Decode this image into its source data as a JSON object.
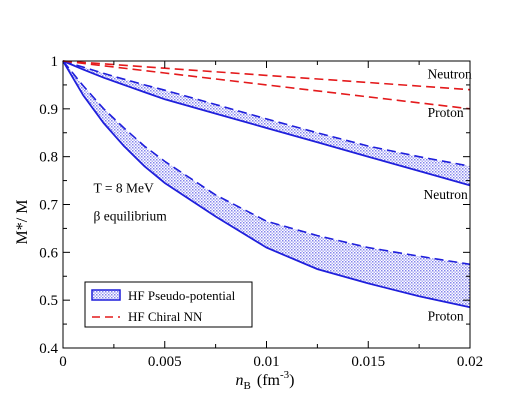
{
  "chart_data": {
    "type": "line",
    "xlabel_var": "n",
    "xlabel_sub": "B",
    "xlabel_unit": "(fm",
    "xlabel_exp": "-3",
    "xlabel_close": ")",
    "ylabel": "M*/ M",
    "xlim": [
      0,
      0.02
    ],
    "ylim": [
      0.4,
      1.0
    ],
    "xticks": [
      {
        "value": 0,
        "label": "0"
      },
      {
        "value": 0.005,
        "label": "0.005"
      },
      {
        "value": 0.01,
        "label": "0.01"
      },
      {
        "value": 0.015,
        "label": "0.015"
      },
      {
        "value": 0.02,
        "label": "0.02"
      }
    ],
    "yticks": [
      {
        "value": 0.4,
        "label": "0.4"
      },
      {
        "value": 0.5,
        "label": "0.5"
      },
      {
        "value": 0.6,
        "label": "0.6"
      },
      {
        "value": 0.7,
        "label": "0.7"
      },
      {
        "value": 0.8,
        "label": "0.8"
      },
      {
        "value": 0.9,
        "label": "0.9"
      },
      {
        "value": 1.0,
        "label": "1"
      }
    ],
    "grid": false,
    "colors": {
      "pseudo": "#1f1fdc",
      "chiral": "#e41a1c"
    },
    "bands": [
      {
        "x": [
          0,
          0.001,
          0.002,
          0.003,
          0.004,
          0.005,
          0.0075,
          0.01,
          0.0125,
          0.015,
          0.0175,
          0.02
        ],
        "lower": [
          1.0,
          0.982,
          0.965,
          0.95,
          0.935,
          0.92,
          0.89,
          0.86,
          0.83,
          0.8,
          0.77,
          0.74
        ],
        "upper": [
          1.0,
          0.987,
          0.974,
          0.962,
          0.95,
          0.939,
          0.909,
          0.879,
          0.85,
          0.822,
          0.8,
          0.78
        ]
      },
      {
        "x": [
          0,
          0.001,
          0.002,
          0.003,
          0.004,
          0.005,
          0.0075,
          0.01,
          0.0125,
          0.015,
          0.0175,
          0.02
        ],
        "lower": [
          1.0,
          0.928,
          0.87,
          0.822,
          0.78,
          0.745,
          0.675,
          0.61,
          0.565,
          0.535,
          0.508,
          0.485
        ],
        "upper": [
          1.0,
          0.948,
          0.9,
          0.86,
          0.822,
          0.79,
          0.72,
          0.665,
          0.635,
          0.61,
          0.592,
          0.575
        ]
      }
    ],
    "series": [
      {
        "group": "chiral",
        "style": "dashed",
        "x": [
          0,
          0.005,
          0.01,
          0.015,
          0.02
        ],
        "values": [
          1.0,
          0.985,
          0.97,
          0.955,
          0.94
        ]
      },
      {
        "group": "chiral",
        "style": "dashed",
        "x": [
          0,
          0.005,
          0.01,
          0.015,
          0.02
        ],
        "values": [
          1.0,
          0.975,
          0.95,
          0.925,
          0.9
        ]
      }
    ],
    "annotations": [
      {
        "text": "Neutron",
        "x": 0.019,
        "y": 0.963
      },
      {
        "text": "Proton",
        "x": 0.0188,
        "y": 0.883
      },
      {
        "text": "Neutron",
        "x": 0.0188,
        "y": 0.712
      },
      {
        "text": "Proton",
        "x": 0.0188,
        "y": 0.457
      },
      {
        "text": "T = 8 MeV",
        "x": 0.0015,
        "y": 0.725
      },
      {
        "text": "β equilibrium",
        "x": 0.0015,
        "y": 0.667
      }
    ],
    "legend": {
      "placement": "bottom-left",
      "entries": [
        {
          "label": "HF Pseudo-potential",
          "group": "pseudo"
        },
        {
          "label": "HF Chiral NN",
          "group": "chiral"
        }
      ]
    }
  }
}
